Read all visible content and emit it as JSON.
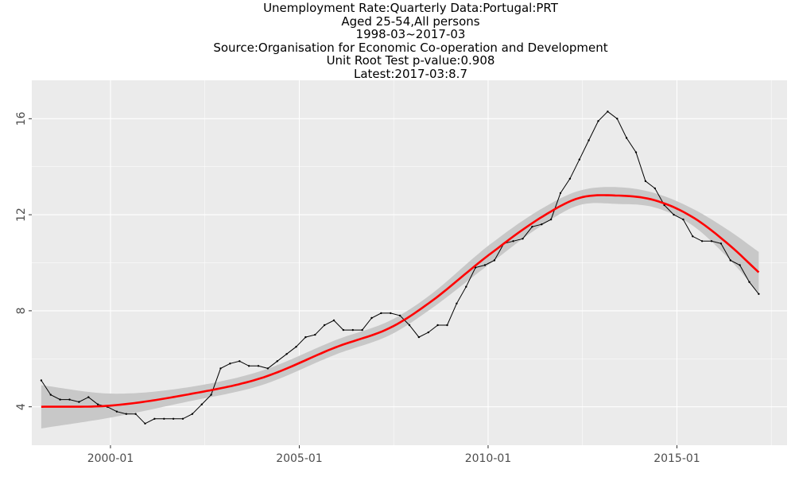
{
  "title_lines": [
    "Unemployment Rate:Quarterly Data:Portugal:PRT",
    "Aged 25-54,All persons",
    "1998-03~2017-03",
    "Source:Organisation for Economic Co-operation and Development",
    "Unit Root Test p-value:0.908",
    "Latest:2017-03:8.7"
  ],
  "chart_data": {
    "type": "line",
    "title": "Unemployment Rate:Quarterly Data:Portugal:PRT",
    "xlabel": "",
    "ylabel": "",
    "x_tick_labels": [
      "2000-01",
      "2005-01",
      "2010-01",
      "2015-01"
    ],
    "y_tick_labels": [
      "4",
      "8",
      "12",
      "16"
    ],
    "ylim": [
      2.4,
      17.6
    ],
    "xlim": [
      "1997-12",
      "2017-12"
    ],
    "grid": true,
    "background": "#ebebeb",
    "colors": {
      "series": "#000000",
      "smooth": "#ff0000",
      "band": "#c8c8c8"
    },
    "series": [
      {
        "values": [
          5.1,
          4.5,
          4.3,
          4.3,
          4.2,
          4.4,
          4.1,
          4.0,
          3.8,
          3.7,
          3.7,
          3.3,
          3.5,
          3.5,
          3.5,
          3.5,
          3.7,
          4.1,
          4.5,
          5.6,
          5.8,
          5.9,
          5.7,
          5.7,
          5.6,
          5.9,
          6.2,
          6.5,
          6.9,
          7.0,
          7.4,
          7.6,
          7.2,
          7.2,
          7.2,
          7.7,
          7.9,
          7.9,
          7.8,
          7.4,
          6.9,
          7.1,
          7.4,
          7.4,
          8.3,
          9.0,
          9.8,
          9.9,
          10.1,
          10.8,
          10.9,
          11.0,
          11.5,
          11.6,
          11.8,
          12.9,
          13.5,
          14.3,
          15.1,
          15.9,
          16.3,
          16.0,
          15.2,
          14.6,
          13.4,
          13.1,
          12.4,
          12.0,
          11.8,
          11.1,
          10.9,
          10.9,
          10.8,
          10.1,
          9.9,
          9.2,
          8.7
        ],
        "x_start": "1998-03",
        "x_end": "2017-03",
        "frequency": "quarterly"
      }
    ],
    "smooth": {
      "x": [
        "1998-03",
        "2000-01",
        "2002-01",
        "2004-01",
        "2006-01",
        "2007-06",
        "2008-06",
        "2010-01",
        "2011-06",
        "2012-06",
        "2013-06",
        "2014-06",
        "2015-06",
        "2016-06",
        "2017-03"
      ],
      "values": [
        4.0,
        4.05,
        4.5,
        5.2,
        6.5,
        7.3,
        8.3,
        10.3,
        11.9,
        12.7,
        12.8,
        12.6,
        11.9,
        10.7,
        9.6
      ],
      "band_halfwidth": [
        0.9,
        0.5,
        0.3,
        0.3,
        0.3,
        0.3,
        0.3,
        0.4,
        0.35,
        0.3,
        0.35,
        0.3,
        0.35,
        0.6,
        0.85
      ]
    }
  }
}
